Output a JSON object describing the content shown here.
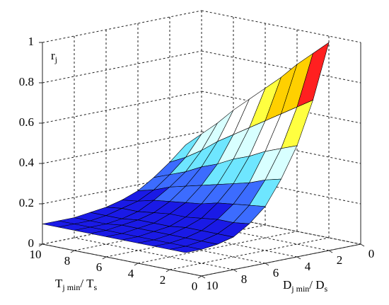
{
  "chart_data": {
    "type": "surface",
    "x": [
      1,
      2,
      3,
      4,
      5,
      6,
      7,
      8,
      9,
      10
    ],
    "y": [
      1,
      2,
      3,
      4,
      5,
      6,
      7,
      8,
      9,
      10
    ],
    "z": [
      [
        1.0,
        0.73,
        0.52,
        0.37,
        0.25,
        0.18,
        0.13,
        0.11,
        0.1,
        0.1
      ],
      [
        0.93,
        0.68,
        0.49,
        0.35,
        0.24,
        0.17,
        0.13,
        0.11,
        0.1,
        0.1
      ],
      [
        0.86,
        0.63,
        0.46,
        0.32,
        0.23,
        0.17,
        0.13,
        0.11,
        0.1,
        0.1
      ],
      [
        0.78,
        0.58,
        0.42,
        0.3,
        0.22,
        0.16,
        0.13,
        0.11,
        0.1,
        0.1
      ],
      [
        0.71,
        0.53,
        0.39,
        0.28,
        0.2,
        0.15,
        0.12,
        0.11,
        0.1,
        0.1
      ],
      [
        0.64,
        0.48,
        0.35,
        0.26,
        0.19,
        0.15,
        0.12,
        0.11,
        0.1,
        0.1
      ],
      [
        0.57,
        0.43,
        0.32,
        0.24,
        0.18,
        0.14,
        0.12,
        0.11,
        0.1,
        0.1
      ],
      [
        0.49,
        0.37,
        0.28,
        0.22,
        0.17,
        0.13,
        0.11,
        0.1,
        0.1,
        0.1
      ],
      [
        0.42,
        0.32,
        0.25,
        0.19,
        0.15,
        0.13,
        0.11,
        0.1,
        0.1,
        0.1
      ],
      [
        0.35,
        0.28,
        0.22,
        0.17,
        0.14,
        0.12,
        0.11,
        0.1,
        0.1,
        0.1
      ]
    ],
    "xlim": [
      0,
      10
    ],
    "xticks": [
      0,
      2,
      4,
      6,
      8,
      10
    ],
    "ylim": [
      0,
      10
    ],
    "yticks": [
      0,
      2,
      4,
      6,
      8,
      10
    ],
    "zlim": [
      0,
      1
    ],
    "zticks": [
      0,
      0.2,
      0.4,
      0.6,
      0.8,
      1
    ],
    "xlabel": [
      "T",
      "j min",
      "/ T",
      "s"
    ],
    "ylabel": [
      "D",
      "j min",
      "/ D",
      "s"
    ],
    "zlabel": [
      "r",
      "j"
    ],
    "grid": true,
    "clim": [
      0,
      1
    ],
    "colormap": [
      "#0000c8",
      "#1a1ae6",
      "#3c6cff",
      "#6ee6ff",
      "#d8ffff",
      "#ffffff",
      "#ffff40",
      "#ffd000",
      "#ff2020",
      "#ff0000"
    ]
  }
}
